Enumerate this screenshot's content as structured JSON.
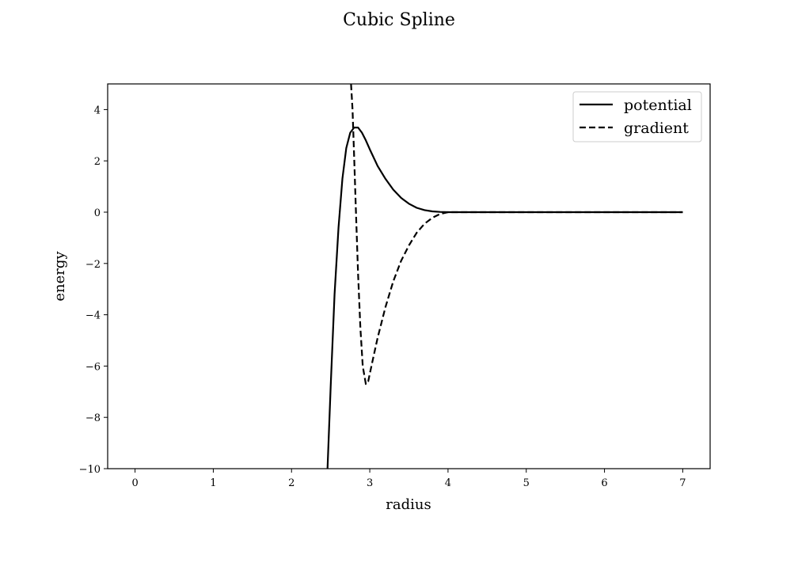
{
  "chart_data": {
    "type": "line",
    "title": "Cubic Spline",
    "xlabel": "radius",
    "ylabel": "energy",
    "xlim": [
      -0.35,
      7.35
    ],
    "ylim": [
      -10,
      5
    ],
    "xticks": [
      0,
      1,
      2,
      3,
      4,
      5,
      6,
      7
    ],
    "yticks": [
      -10,
      -8,
      -6,
      -4,
      -2,
      0,
      2,
      4
    ],
    "xtick_labels": [
      "0",
      "1",
      "2",
      "3",
      "4",
      "5",
      "6",
      "7"
    ],
    "ytick_labels": [
      "−10",
      "−8",
      "−6",
      "−4",
      "−2",
      "0",
      "2",
      "4"
    ],
    "grid": false,
    "legend_position": "upper right",
    "series": [
      {
        "name": "potential",
        "style": "solid",
        "color": "#000000",
        "x": [
          2.46,
          2.5,
          2.55,
          2.6,
          2.65,
          2.7,
          2.75,
          2.8,
          2.85,
          2.9,
          2.95,
          3.0,
          3.1,
          3.2,
          3.3,
          3.4,
          3.5,
          3.6,
          3.7,
          3.8,
          3.9,
          4.0,
          4.1,
          4.2,
          5.0,
          6.0,
          7.0
        ],
        "y": [
          -10.0,
          -6.8,
          -3.2,
          -0.6,
          1.3,
          2.5,
          3.1,
          3.3,
          3.3,
          3.1,
          2.8,
          2.45,
          1.8,
          1.3,
          0.88,
          0.56,
          0.33,
          0.17,
          0.08,
          0.03,
          0.01,
          0.0,
          0.0,
          0.0,
          0.0,
          0.0,
          0.0
        ]
      },
      {
        "name": "gradient",
        "style": "dashed",
        "color": "#000000",
        "x": [
          2.76,
          2.78,
          2.8,
          2.82,
          2.85,
          2.88,
          2.91,
          2.95,
          2.98,
          3.0,
          3.05,
          3.1,
          3.2,
          3.3,
          3.4,
          3.5,
          3.6,
          3.7,
          3.8,
          3.9,
          4.0,
          4.1,
          4.2,
          5.0,
          6.0,
          7.0
        ],
        "y": [
          5.0,
          4.0,
          2.2,
          0.3,
          -2.4,
          -4.5,
          -6.0,
          -6.7,
          -6.6,
          -6.3,
          -5.6,
          -4.9,
          -3.7,
          -2.7,
          -1.9,
          -1.3,
          -0.8,
          -0.45,
          -0.22,
          -0.07,
          0.0,
          0.0,
          0.0,
          0.0,
          0.0,
          0.0
        ]
      }
    ]
  }
}
